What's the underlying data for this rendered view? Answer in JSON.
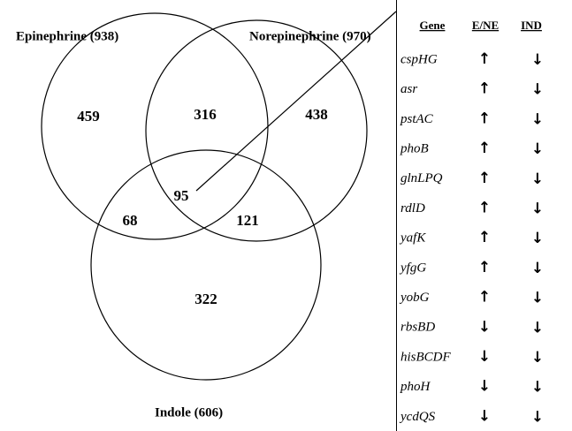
{
  "sets": [
    {
      "label": "Epinephrine (938)"
    },
    {
      "label": "Norepinephrine (970)"
    },
    {
      "label": "Indole (606)"
    }
  ],
  "regions": {
    "epinephrine_only": "459",
    "norepinephrine_only": "438",
    "indole_only": "322",
    "epi_norepi": "316",
    "epi_indole": "68",
    "norepi_indole": "121",
    "all": "95"
  },
  "table": {
    "header": [
      "Gene",
      "E/NE",
      "IND"
    ],
    "rows": [
      [
        "cspHG",
        "↑",
        "↓"
      ],
      [
        "asr",
        "↑",
        "↓"
      ],
      [
        "pstAC",
        "↑",
        "↓"
      ],
      [
        "phoB",
        "↑",
        "↓"
      ],
      [
        "glnLPQ",
        "↑",
        "↓"
      ],
      [
        "rdlD",
        "↑",
        "↓"
      ],
      [
        "yafK",
        "↑",
        "↓"
      ],
      [
        "yfgG",
        "↑",
        "↓"
      ],
      [
        "yobG",
        "↑",
        "↓"
      ],
      [
        "rbsBD",
        "↓",
        "↓"
      ],
      [
        "hisBCDF",
        "↓",
        "↓"
      ],
      [
        "phoH",
        "↓",
        "↓"
      ],
      [
        "ycdQS",
        "↓",
        "↓"
      ]
    ]
  }
}
